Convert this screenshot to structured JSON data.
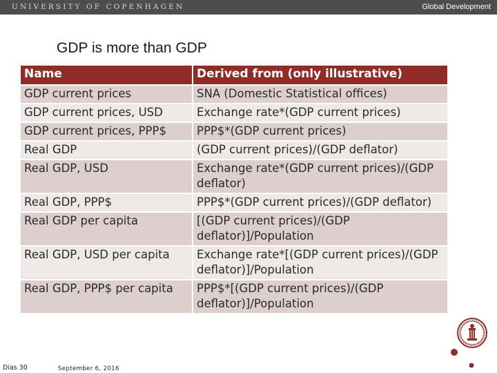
{
  "header": {
    "university": "UNIVERSITY OF COPENHAGEN",
    "department": "Global Development"
  },
  "slide": {
    "title": "GDP is more than GDP"
  },
  "table": {
    "headers": [
      "Name",
      "Derived from (only illustrative)"
    ],
    "rows": [
      [
        "GDP current prices",
        "SNA (Domestic Statistical offices)"
      ],
      [
        "GDP current prices, USD",
        "Exchange rate*(GDP current prices)"
      ],
      [
        "GDP current prices, PPP$",
        "PPP$*(GDP current prices)"
      ],
      [
        "Real GDP",
        "(GDP current prices)/(GDP deflator)"
      ],
      [
        "Real GDP, USD",
        "Exchange rate*(GDP current prices)/(GDP deflator)"
      ],
      [
        "Real GDP, PPP$",
        "PPP$*(GDP current prices)/(GDP deflator)"
      ],
      [
        "Real GDP per capita",
        "[(GDP current prices)/(GDP deflator)]/Population"
      ],
      [
        "Real GDP, USD per capita",
        "Exchange rate*[(GDP current prices)/(GDP deflator)]/Population"
      ],
      [
        "Real GDP, PPP$ per capita",
        "PPP$*[(GDP current prices)/(GDP deflator)]/Population"
      ]
    ]
  },
  "footer": {
    "slide_label": "Dias 30",
    "date": "September 6, 2016"
  },
  "colors": {
    "topbar": "#4d4d4d",
    "header_row": "#8f2c25",
    "row_odd": "#dccfcd",
    "row_even": "#eee8e7",
    "seal": "#8f2c25"
  },
  "icons": {
    "logo": "university-seal-icon"
  }
}
